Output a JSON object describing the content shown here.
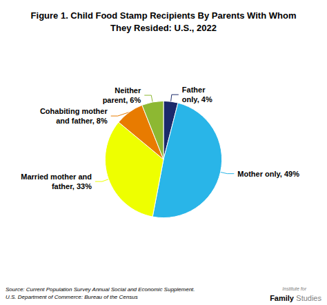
{
  "chart_data": {
    "type": "pie",
    "title": "Figure 1. Child Food Stamp Recipients By Parents With Whom\nThey Resided: U.S., 2022",
    "values": [
      4,
      49,
      33,
      8,
      6
    ],
    "value_labels": [
      "Father\nonly, 4%",
      "Mother only, 49%",
      "Married mother and\nfather, 33%",
      "Cohabiting mother\nand father, 8%",
      "Neither\nparent, 6%"
    ],
    "colors": [
      "#1B2A6B",
      "#29B5E8",
      "#EEFF00",
      "#E87B00",
      "#8DB832"
    ],
    "data_labels": true,
    "annotations": [
      "Source: Current Population Survey Annual Social and Economic Supplement.\nU.S. Department of Commerce: Bureau of the Census",
      "Institute for",
      "Family",
      "Studies"
    ]
  }
}
